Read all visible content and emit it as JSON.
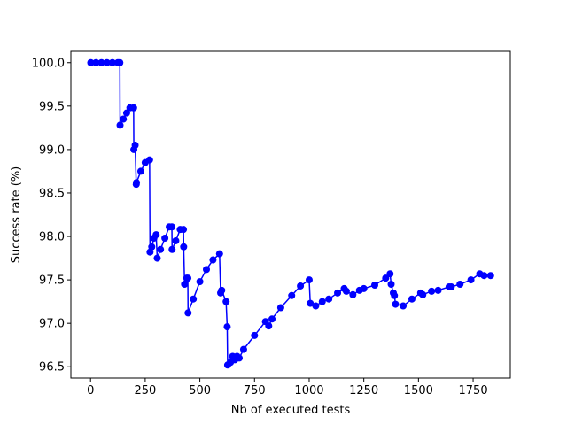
{
  "chart_data": {
    "type": "line",
    "title": "",
    "xlabel": "Nb of executed tests",
    "ylabel": "Success rate (%)",
    "xlim": [
      -90,
      1920
    ],
    "ylim": [
      96.37,
      100.13
    ],
    "xticks": [
      0,
      250,
      500,
      750,
      1000,
      1250,
      1500,
      1750
    ],
    "yticks": [
      96.5,
      97.0,
      97.5,
      98.0,
      98.5,
      99.0,
      99.5,
      100.0
    ],
    "grid": false,
    "legend": "none",
    "color": "#0000ff",
    "marker": "circle",
    "series": [
      {
        "x": [
          1,
          25,
          50,
          75,
          100,
          125,
          134,
          135,
          150,
          165,
          180,
          197,
          198,
          204,
          209,
          210,
          230,
          250,
          270,
          272,
          280,
          290,
          300,
          305,
          320,
          340,
          360,
          372,
          373,
          390,
          410,
          425,
          426,
          430,
          440,
          445,
          446,
          470,
          500,
          530,
          560,
          590,
          595,
          600,
          620,
          625,
          627,
          640,
          650,
          660,
          670,
          680,
          700,
          750,
          800,
          815,
          830,
          870,
          920,
          960,
          1000,
          1005,
          1030,
          1060,
          1090,
          1130,
          1160,
          1170,
          1200,
          1230,
          1250,
          1300,
          1350,
          1370,
          1375,
          1385,
          1390,
          1395,
          1430,
          1470,
          1510,
          1520,
          1560,
          1590,
          1640,
          1650,
          1690,
          1740,
          1780,
          1800,
          1830
        ],
        "y": [
          100.0,
          100.0,
          100.0,
          100.0,
          100.0,
          100.0,
          100.0,
          99.28,
          99.35,
          99.42,
          99.48,
          99.48,
          99.0,
          99.05,
          98.6,
          98.62,
          98.75,
          98.85,
          98.88,
          97.82,
          97.88,
          97.98,
          98.02,
          97.75,
          97.85,
          97.98,
          98.11,
          98.11,
          97.85,
          97.95,
          98.08,
          98.08,
          97.88,
          97.45,
          97.52,
          97.52,
          97.12,
          97.28,
          97.48,
          97.62,
          97.73,
          97.8,
          97.35,
          97.38,
          97.25,
          96.96,
          96.52,
          96.55,
          96.62,
          96.58,
          96.62,
          96.6,
          96.7,
          96.86,
          97.02,
          96.97,
          97.05,
          97.18,
          97.32,
          97.43,
          97.5,
          97.23,
          97.2,
          97.25,
          97.28,
          97.35,
          97.4,
          97.37,
          97.33,
          97.38,
          97.4,
          97.44,
          97.52,
          97.57,
          97.45,
          97.35,
          97.32,
          97.22,
          97.2,
          97.28,
          97.35,
          97.33,
          97.37,
          97.38,
          97.42,
          97.42,
          97.45,
          97.5,
          97.57,
          97.55,
          97.55
        ]
      }
    ]
  }
}
